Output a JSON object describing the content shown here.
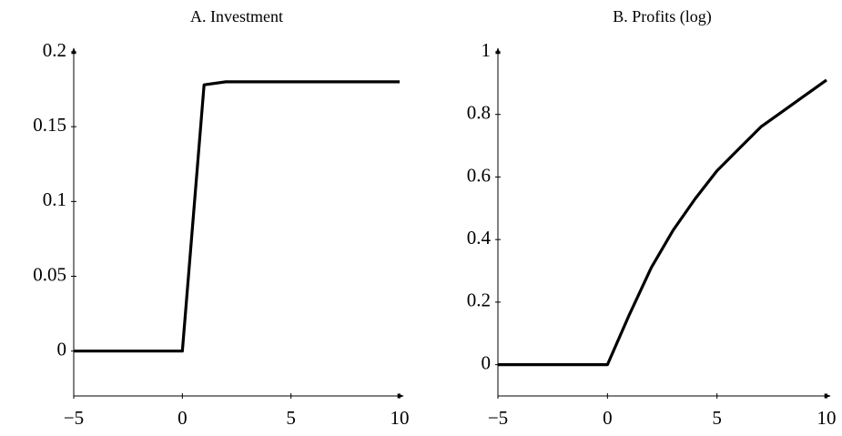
{
  "chart_data": [
    {
      "type": "line",
      "title": "A. Investment",
      "x": [
        -5,
        -4,
        -3,
        -2,
        -1,
        0,
        1,
        2,
        3,
        4,
        5,
        6,
        7,
        8,
        9,
        10
      ],
      "values": [
        0,
        0,
        0,
        0,
        0,
        0,
        0.178,
        0.18,
        0.18,
        0.18,
        0.18,
        0.18,
        0.18,
        0.18,
        0.18,
        0.18
      ],
      "color": "#000000",
      "xlim": [
        -5,
        10
      ],
      "ylim": [
        -0.03,
        0.2
      ],
      "xticks": [
        {
          "value": -5,
          "label": "−5"
        },
        0,
        5,
        10
      ],
      "yticks": [
        0,
        0.05,
        0.1,
        0.15,
        0.2
      ]
    },
    {
      "type": "line",
      "title": "B. Profits (log)",
      "x": [
        -5,
        -4,
        -3,
        -2,
        -1,
        0,
        1,
        2,
        3,
        4,
        5,
        6,
        7,
        8,
        9,
        10
      ],
      "values": [
        0,
        0,
        0,
        0,
        0,
        0,
        0.16,
        0.31,
        0.43,
        0.53,
        0.62,
        0.69,
        0.76,
        0.81,
        0.86,
        0.91
      ],
      "color": "#000000",
      "xlim": [
        -5,
        10
      ],
      "ylim": [
        -0.1,
        1
      ],
      "xticks": [
        {
          "value": -5,
          "label": "−5"
        },
        0,
        5,
        10
      ],
      "yticks": [
        0,
        0.2,
        0.4,
        0.6,
        0.8,
        1
      ]
    }
  ]
}
